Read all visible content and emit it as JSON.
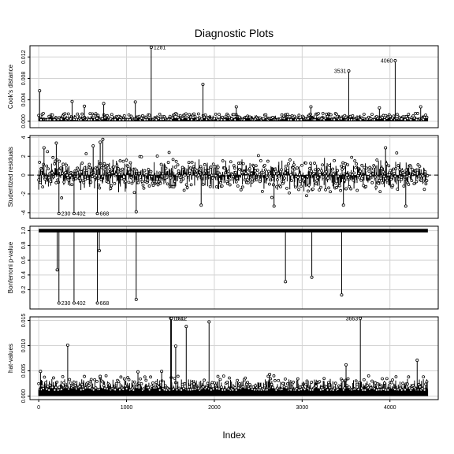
{
  "chart_data": {
    "type": "scatter",
    "title": "Diagnostic Plots",
    "xlabel": "Index",
    "xlim": [
      -100,
      4550
    ],
    "x_ticks": [
      0,
      1000,
      2000,
      3000,
      4000
    ],
    "x_tick_labels": [
      "0",
      "1000",
      "2000",
      "3000",
      "4000"
    ],
    "n_observations": 4432,
    "grid": true,
    "panels": [
      {
        "name": "cooks-distance",
        "ylabel": "Cook's distance",
        "ylim": [
          -0.0012,
          0.0141
        ],
        "y_ticks": [
          0,
          0.004,
          0.008,
          0.012
        ],
        "y_tick_labels": [
          "0.000",
          "0.004",
          "0.008",
          "0.012"
        ],
        "baseline": 0,
        "dashed_ref": null,
        "style": "spikes-from-baseline",
        "noise": {
          "base": 0.0003,
          "spread": 0.0009
        },
        "extra_spikes": [
          [
            10,
            0.0057
          ],
          [
            380,
            0.0037
          ],
          [
            520,
            0.0028
          ],
          [
            740,
            0.0033
          ],
          [
            1100,
            0.0036
          ],
          [
            1870,
            0.0069
          ],
          [
            2250,
            0.0027
          ],
          [
            3100,
            0.0027
          ],
          [
            3880,
            0.0025
          ],
          [
            4350,
            0.0027
          ]
        ],
        "labeled_points": [
          {
            "x": 1281,
            "y": 0.0138,
            "label": "1281"
          },
          {
            "x": 3531,
            "y": 0.0094,
            "label": "3531"
          },
          {
            "x": 4060,
            "y": 0.0113,
            "label": "4060"
          }
        ]
      },
      {
        "name": "studentized-residuals",
        "ylabel": "Studentized residuals",
        "ylim": [
          -4.6,
          4.2
        ],
        "y_ticks": [
          -4,
          -2,
          0,
          2,
          4
        ],
        "y_tick_labels": [
          "-4",
          "-2",
          "0",
          "2",
          "4"
        ],
        "baseline": 0,
        "dashed_ref": 0,
        "style": "residual-band",
        "noise": {
          "base": 0,
          "spread": 1.6
        },
        "extra_spikes": [
          [
            60,
            2.9
          ],
          [
            200,
            3.4
          ],
          [
            620,
            3.1
          ],
          [
            700,
            3.5
          ],
          [
            730,
            3.8
          ],
          [
            1110,
            -3.9
          ],
          [
            1850,
            -3.2
          ],
          [
            2680,
            -3.3
          ],
          [
            3470,
            -3.2
          ],
          [
            3950,
            2.9
          ],
          [
            4180,
            -3.3
          ]
        ],
        "labeled_points": [
          {
            "x": 230,
            "y": -4.1,
            "label": "230"
          },
          {
            "x": 402,
            "y": -4.1,
            "label": "402"
          },
          {
            "x": 668,
            "y": -4.1,
            "label": "668"
          }
        ]
      },
      {
        "name": "bonferroni-p-value",
        "ylabel": "Bonferroni p-value",
        "ylim": [
          -0.06,
          1.06
        ],
        "y_ticks": [
          0.2,
          0.4,
          0.6,
          0.8,
          1.0
        ],
        "y_tick_labels": [
          "0.2",
          "0.4",
          "0.6",
          "0.8",
          "1.0"
        ],
        "baseline": 1,
        "dashed_ref": null,
        "style": "spikes-from-top",
        "noise": {
          "base": 1,
          "spread": 0
        },
        "extra_spikes": [
          [
            210,
            0.47
          ],
          [
            690,
            0.73
          ],
          [
            1110,
            0.07
          ],
          [
            2810,
            0.31
          ],
          [
            3110,
            0.37
          ],
          [
            3450,
            0.13
          ]
        ],
        "labeled_points": [
          {
            "x": 230,
            "y": 0.02,
            "label": "230"
          },
          {
            "x": 402,
            "y": 0.02,
            "label": "402"
          },
          {
            "x": 668,
            "y": 0.02,
            "label": "668"
          }
        ]
      },
      {
        "name": "hat-values",
        "ylabel": "hat-values",
        "ylim": [
          -0.0007,
          0.0157
        ],
        "y_ticks": [
          0,
          0.005,
          0.01,
          0.015
        ],
        "y_tick_labels": [
          "0.000",
          "0.005",
          "0.010",
          "0.015"
        ],
        "baseline": 0,
        "dashed_ref": null,
        "style": "spikes-from-baseline",
        "noise": {
          "base": 0.0012,
          "spread": 0.0022
        },
        "extra_spikes": [
          [
            20,
            0.0049
          ],
          [
            330,
            0.0101
          ],
          [
            700,
            0.0039
          ],
          [
            1130,
            0.0048
          ],
          [
            1400,
            0.0049
          ],
          [
            1560,
            0.0099
          ],
          [
            1680,
            0.0138
          ],
          [
            1940,
            0.0147
          ],
          [
            2630,
            0.0043
          ],
          [
            3500,
            0.0062
          ],
          [
            4310,
            0.0071
          ]
        ],
        "labeled_points": [
          {
            "x": 1503,
            "y": 0.0154,
            "label": "1503"
          },
          {
            "x": 1512,
            "y": 0.0154,
            "label": "1512"
          },
          {
            "x": 3663,
            "y": 0.0154,
            "label": "3663"
          }
        ]
      }
    ]
  }
}
